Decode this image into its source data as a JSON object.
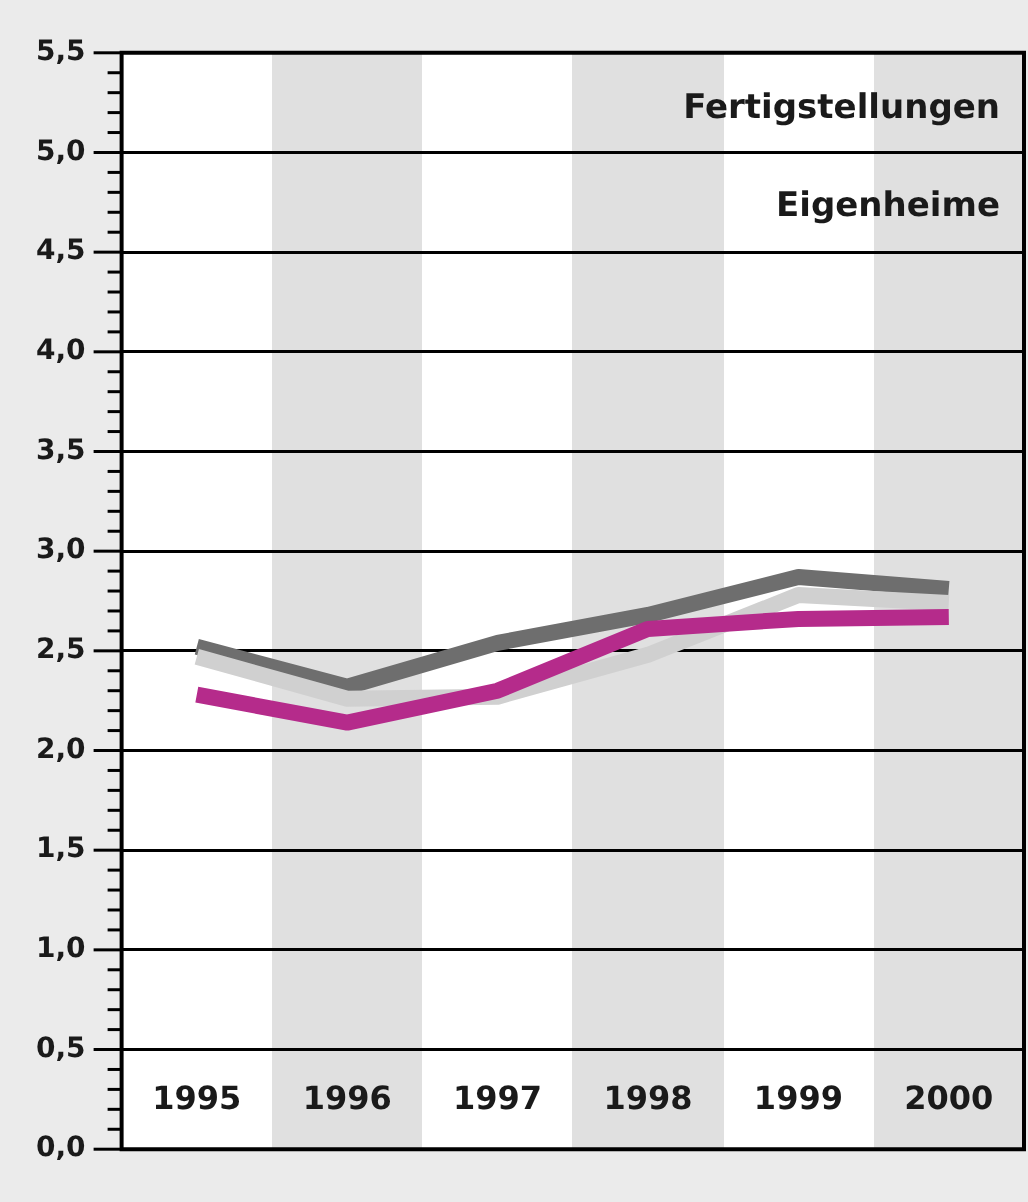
{
  "chart_data": {
    "type": "line",
    "title": "Fertigstellungen",
    "subtitle": "Eigenheime",
    "categories": [
      "1995",
      "1996",
      "1997",
      "1998",
      "1999",
      "2000"
    ],
    "series": [
      {
        "color": "#b52b8b",
        "values": [
          2.28,
          2.14,
          2.3,
          2.61,
          2.66,
          2.67
        ]
      },
      {
        "color": "#d0d0d0",
        "values": [
          2.47,
          2.26,
          2.27,
          2.48,
          2.78,
          2.74
        ]
      },
      {
        "color": "#6e6e6e",
        "values": [
          2.52,
          2.32,
          2.54,
          2.68,
          2.87,
          2.81
        ]
      }
    ],
    "ylim": [
      0,
      5.5
    ],
    "yticks": [
      {
        "value": 0,
        "label": "0,0"
      },
      {
        "value": 0.1,
        "label": null
      },
      {
        "value": 0.2,
        "label": null
      },
      {
        "value": 0.3,
        "label": null
      },
      {
        "value": 0.4,
        "label": null
      },
      {
        "value": 0.5,
        "label": "0,5"
      },
      {
        "value": 0.6,
        "label": null
      },
      {
        "value": 0.7,
        "label": null
      },
      {
        "value": 0.8,
        "label": null
      },
      {
        "value": 0.9,
        "label": null
      },
      {
        "value": 1.0,
        "label": "1,0"
      },
      {
        "value": 1.1,
        "label": null
      },
      {
        "value": 1.2,
        "label": null
      },
      {
        "value": 1.3,
        "label": null
      },
      {
        "value": 1.4,
        "label": null
      },
      {
        "value": 1.5,
        "label": "1,5"
      },
      {
        "value": 1.6,
        "label": null
      },
      {
        "value": 1.7,
        "label": null
      },
      {
        "value": 1.8,
        "label": null
      },
      {
        "value": 1.9,
        "label": null
      },
      {
        "value": 2.0,
        "label": "2,0"
      },
      {
        "value": 2.1,
        "label": null
      },
      {
        "value": 2.2,
        "label": null
      },
      {
        "value": 2.3,
        "label": null
      },
      {
        "value": 2.4,
        "label": null
      },
      {
        "value": 2.5,
        "label": "2,5"
      },
      {
        "value": 2.6,
        "label": null
      },
      {
        "value": 2.7,
        "label": null
      },
      {
        "value": 2.8,
        "label": null
      },
      {
        "value": 2.9,
        "label": null
      },
      {
        "value": 3.0,
        "label": "3,0"
      },
      {
        "value": 3.1,
        "label": null
      },
      {
        "value": 3.2,
        "label": null
      },
      {
        "value": 3.3,
        "label": null
      },
      {
        "value": 3.4,
        "label": null
      },
      {
        "value": 3.5,
        "label": "3,5"
      },
      {
        "value": 3.6,
        "label": null
      },
      {
        "value": 3.7,
        "label": null
      },
      {
        "value": 3.8,
        "label": null
      },
      {
        "value": 3.9,
        "label": null
      },
      {
        "value": 4.0,
        "label": "4,0"
      },
      {
        "value": 4.1,
        "label": null
      },
      {
        "value": 4.2,
        "label": null
      },
      {
        "value": 4.3,
        "label": null
      },
      {
        "value": 4.4,
        "label": null
      },
      {
        "value": 4.5,
        "label": "4,5"
      },
      {
        "value": 4.6,
        "label": null
      },
      {
        "value": 4.7,
        "label": null
      },
      {
        "value": 4.8,
        "label": null
      },
      {
        "value": 4.9,
        "label": null
      },
      {
        "value": 5.0,
        "label": "5,0"
      },
      {
        "value": 5.1,
        "label": null
      },
      {
        "value": 5.2,
        "label": null
      },
      {
        "value": 5.3,
        "label": null
      },
      {
        "value": 5.4,
        "label": null
      },
      {
        "value": 5.5,
        "label": "5,5"
      }
    ],
    "grid": "y",
    "legend": false,
    "marker": "none",
    "line_style": "solid"
  }
}
